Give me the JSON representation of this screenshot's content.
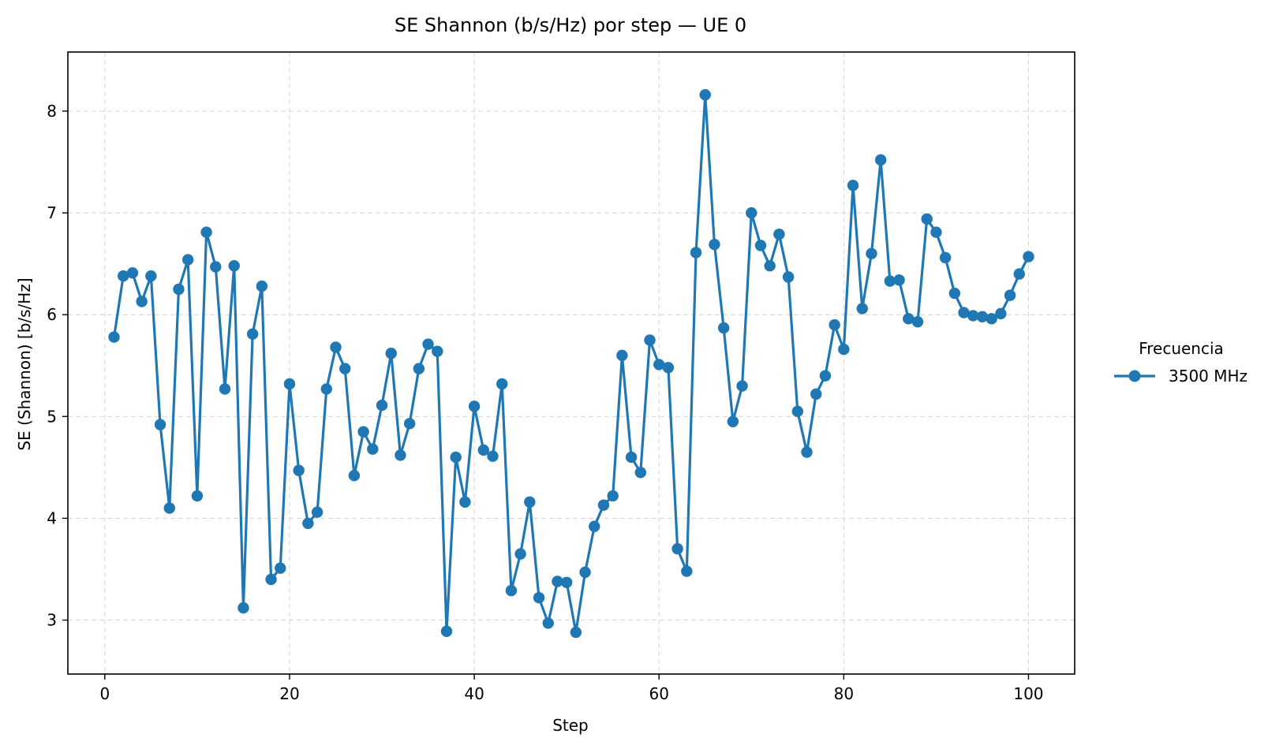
{
  "chart_data": {
    "type": "line",
    "title": "SE Shannon (b/s/Hz) por step — UE 0",
    "xlabel": "Step",
    "ylabel": "SE (Shannon) [b/s/Hz]",
    "xlim": [
      -4,
      105
    ],
    "ylim": [
      2.47,
      8.58
    ],
    "xticks": [
      0,
      20,
      40,
      60,
      80,
      100
    ],
    "yticks": [
      3,
      4,
      5,
      6,
      7,
      8
    ],
    "grid": true,
    "legend": {
      "title": "Frecuencia",
      "placement": "right-outside"
    },
    "series": [
      {
        "name": "3500 MHz",
        "color": "#1f77b4",
        "marker": "circle",
        "x": [
          1,
          2,
          3,
          4,
          5,
          6,
          7,
          8,
          9,
          10,
          11,
          12,
          13,
          14,
          15,
          16,
          17,
          18,
          19,
          20,
          21,
          22,
          23,
          24,
          25,
          26,
          27,
          28,
          29,
          30,
          31,
          32,
          33,
          34,
          35,
          36,
          37,
          38,
          39,
          40,
          41,
          42,
          43,
          44,
          45,
          46,
          47,
          48,
          49,
          50,
          51,
          52,
          53,
          54,
          55,
          56,
          57,
          58,
          59,
          60,
          61,
          62,
          63,
          64,
          65,
          66,
          67,
          68,
          69,
          70,
          71,
          72,
          73,
          74,
          75,
          76,
          77,
          78,
          79,
          80,
          81,
          82,
          83,
          84,
          85,
          86,
          87,
          88,
          89,
          90,
          91,
          92,
          93,
          94,
          95,
          96,
          97,
          98,
          99,
          100
        ],
        "y": [
          5.78,
          6.38,
          6.41,
          6.13,
          6.38,
          4.92,
          4.1,
          6.25,
          6.54,
          4.22,
          6.81,
          6.47,
          5.27,
          6.48,
          3.12,
          5.81,
          6.28,
          3.4,
          3.51,
          5.32,
          4.47,
          3.95,
          4.06,
          5.27,
          5.68,
          5.47,
          4.42,
          4.85,
          4.68,
          5.11,
          5.62,
          4.62,
          4.93,
          5.47,
          5.71,
          5.64,
          2.89,
          4.6,
          4.16,
          5.1,
          4.67,
          4.61,
          5.32,
          3.29,
          3.65,
          4.16,
          3.22,
          2.97,
          3.38,
          3.37,
          2.88,
          3.47,
          3.92,
          4.13,
          4.22,
          5.6,
          4.6,
          4.45,
          5.75,
          5.51,
          5.48,
          3.7,
          3.48,
          6.61,
          8.16,
          6.69,
          5.87,
          4.95,
          5.3,
          7.0,
          6.68,
          6.48,
          6.79,
          6.37,
          5.05,
          4.65,
          5.22,
          5.4,
          5.9,
          5.66,
          7.27,
          6.06,
          6.6,
          7.52,
          6.33,
          6.34,
          5.96,
          5.93,
          6.94,
          6.81,
          6.56,
          6.21,
          6.02,
          5.99,
          5.98,
          5.96,
          6.01,
          6.19,
          6.4,
          6.57
        ]
      }
    ]
  }
}
